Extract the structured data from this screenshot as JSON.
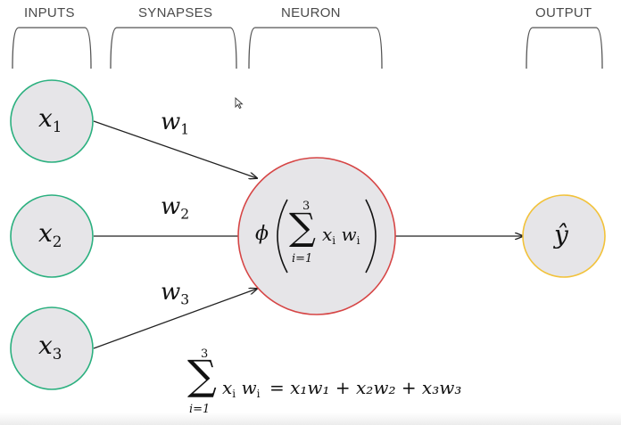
{
  "sections": {
    "inputs": "INPUTS",
    "synapses": "SYNAPSES",
    "neuron": "NEURON",
    "output": "OUTPUT"
  },
  "inputs": [
    {
      "var": "x",
      "sub": "1"
    },
    {
      "var": "x",
      "sub": "2"
    },
    {
      "var": "x",
      "sub": "3"
    }
  ],
  "weights": [
    {
      "var": "w",
      "sub": "1"
    },
    {
      "var": "w",
      "sub": "2"
    },
    {
      "var": "w",
      "sub": "3"
    }
  ],
  "neuron": {
    "phi": "ϕ",
    "sum_upper": "3",
    "sum_lower": "i=1",
    "term_x": "x",
    "term_x_sub": "i",
    "term_w": "w",
    "term_w_sub": "i"
  },
  "output": {
    "label": "ŷ"
  },
  "equation": {
    "sum_upper": "3",
    "sum_lower": "i=1",
    "lhs_x": "x",
    "lhs_x_sub": "i",
    "lhs_w": "w",
    "lhs_w_sub": "i",
    "rhs": "= x₁w₁ + x₂w₂ + x₃w₃"
  },
  "colors": {
    "input_border": "#2bb07f",
    "neuron_border": "#d64545",
    "output_border": "#f2c23a",
    "node_fill": "#e6e5e8",
    "arrow": "#222222",
    "bracket": "#555555"
  }
}
